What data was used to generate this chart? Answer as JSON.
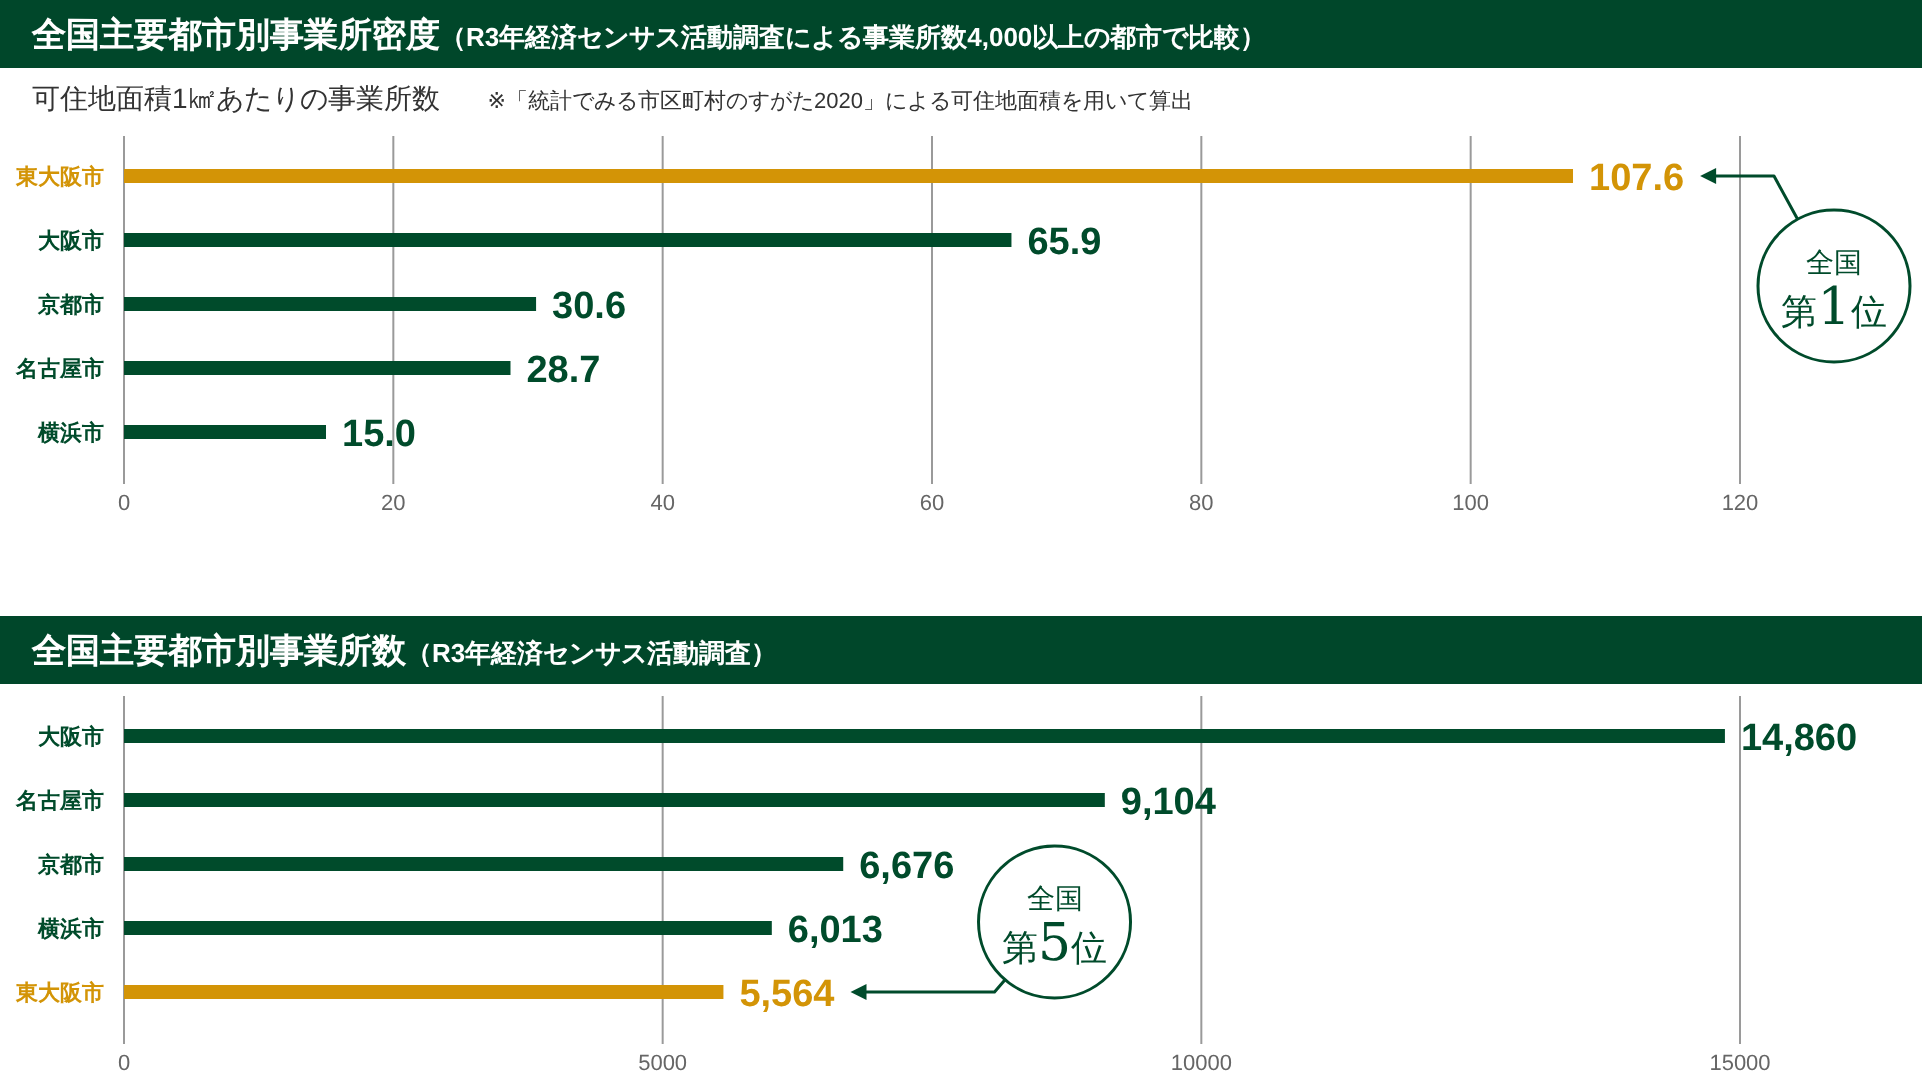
{
  "chart_data": [
    {
      "type": "bar",
      "orientation": "horizontal",
      "title": "全国主要都市別事業所密度（R3年経済センサス活動調査による事業所数4,000以上の都市で比較）",
      "subtitle": "可住地面積1㎢あたりの事業所数",
      "annotations": [
        "※「統計でみる市区町村のすがた2020」による可住地面積を用いて算出",
        "全国第1位"
      ],
      "categories": [
        "東大阪市",
        "大阪市",
        "京都市",
        "名古屋市",
        "横浜市"
      ],
      "values": [
        107.6,
        65.9,
        30.6,
        28.7,
        15.0
      ],
      "colors": [
        "#d39406",
        "#004b2b",
        "#004b2b",
        "#004b2b",
        "#004b2b"
      ],
      "value_labels": [
        "107.6",
        "65.9",
        "30.6",
        "28.7",
        "15.0"
      ],
      "xlim": [
        0,
        120
      ],
      "xticks": [
        0,
        20,
        40,
        60,
        80,
        100,
        120
      ],
      "grid": "x"
    },
    {
      "type": "bar",
      "orientation": "horizontal",
      "title": "全国主要都市別事業所数（R3年経済センサス活動調査）",
      "annotations": [
        "全国第5位"
      ],
      "categories": [
        "大阪市",
        "名古屋市",
        "京都市",
        "横浜市",
        "東大阪市"
      ],
      "values": [
        14860,
        9104,
        6676,
        6013,
        5564
      ],
      "colors": [
        "#004b2b",
        "#004b2b",
        "#004b2b",
        "#004b2b",
        "#d39406"
      ],
      "value_labels": [
        "14,860",
        "9,104",
        "6,676",
        "6,013",
        "5,564"
      ],
      "xlim": [
        0,
        15000
      ],
      "xticks": [
        0,
        5000,
        10000,
        15000
      ],
      "grid": "x"
    }
  ]
}
